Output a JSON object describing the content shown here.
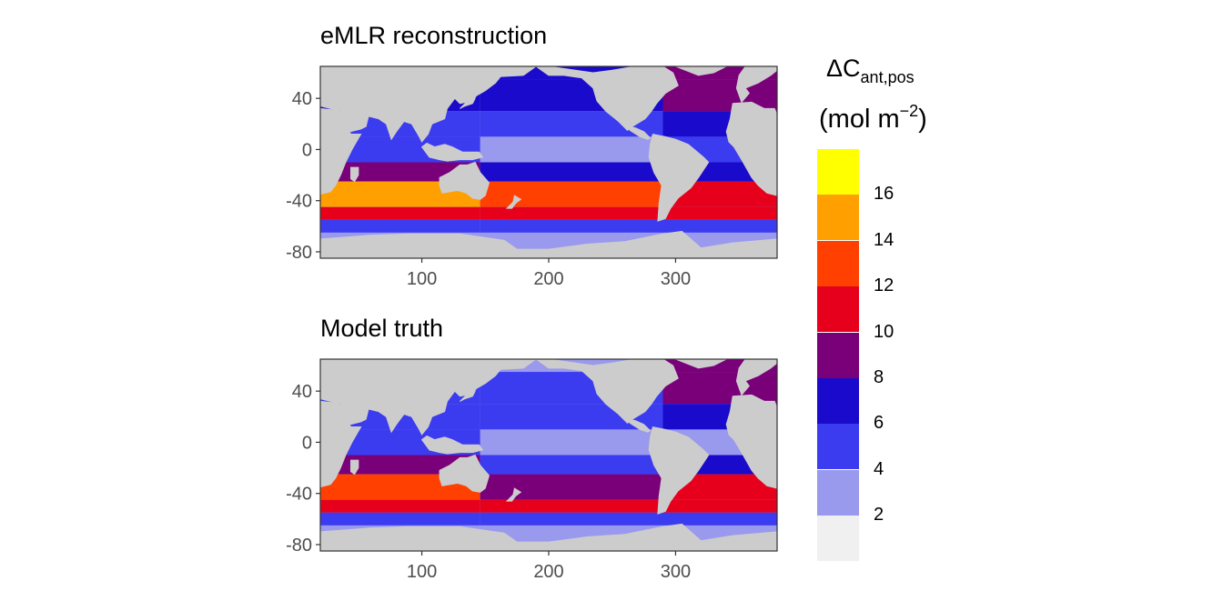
{
  "panels": [
    {
      "title": "eMLR reconstruction"
    },
    {
      "title": "Model truth"
    }
  ],
  "legend": {
    "title_symbol": "ΔC",
    "title_subscript": "ant,pos",
    "unit_prefix": "(mol m",
    "unit_superscript": "−2",
    "unit_suffix": ")",
    "breaks": [
      "2",
      "4",
      "6",
      "8",
      "10",
      "12",
      "14",
      "16"
    ],
    "colors": [
      "#f0f0f0",
      "#9999ee",
      "#3b3bef",
      "#1a0acb",
      "#7a0079",
      "#e6001c",
      "#ff4000",
      "#ff9f00",
      "#ffff00"
    ]
  },
  "colors": {
    "land": "#cccccc",
    "panel_border": "#333333"
  },
  "chart_data": [
    {
      "type": "heatmap",
      "title": "eMLR reconstruction",
      "xlabel": "",
      "ylabel": "",
      "xlim": [
        20,
        380
      ],
      "ylim": [
        -85,
        65
      ],
      "x_ticks": [
        100,
        200,
        300
      ],
      "y_ticks": [
        40,
        0,
        -40,
        -80
      ],
      "bands": [
        {
          "lat_range": [
            55,
            65
          ],
          "Pacific": "6-8",
          "Atlantic": "8-10"
        },
        {
          "lat_range": [
            30,
            55
          ],
          "Pacific": "6-8",
          "Atlantic": "8-10"
        },
        {
          "lat_range": [
            10,
            30
          ],
          "Pacific": "4-6",
          "Atlantic": "6-8"
        },
        {
          "lat_range": [
            -10,
            10
          ],
          "Pacific": "2-4",
          "Indian": "4-6",
          "Atlantic": "4-6"
        },
        {
          "lat_range": [
            -25,
            -10
          ],
          "Pacific": "6-8",
          "Indian": "8-10",
          "Atlantic": "6-8"
        },
        {
          "lat_range": [
            -45,
            -25
          ],
          "Pacific": "12-14",
          "Indian": "14-16",
          "Atlantic": "10-12"
        },
        {
          "lat_range": [
            -55,
            -45
          ],
          "Pacific": "10-12",
          "Indian": "10-12",
          "Atlantic": "10-12"
        },
        {
          "lat_range": [
            -65,
            -55
          ],
          "Pacific": "4-6",
          "Indian": "4-6",
          "Atlantic": "4-6"
        },
        {
          "lat_range": [
            -80,
            -65
          ],
          "Pacific": "2-4",
          "Indian": "2-4",
          "Atlantic": "2-4"
        }
      ]
    },
    {
      "type": "heatmap",
      "title": "Model truth",
      "xlabel": "",
      "ylabel": "",
      "xlim": [
        20,
        380
      ],
      "ylim": [
        -85,
        65
      ],
      "x_ticks": [
        100,
        200,
        300
      ],
      "y_ticks": [
        40,
        0,
        -40,
        -80
      ],
      "bands": [
        {
          "lat_range": [
            55,
            65
          ],
          "Pacific": "2-4",
          "Atlantic": "8-10"
        },
        {
          "lat_range": [
            30,
            55
          ],
          "Pacific": "4-6",
          "Atlantic": "8-10"
        },
        {
          "lat_range": [
            10,
            30
          ],
          "Pacific": "4-6",
          "Atlantic": "6-8"
        },
        {
          "lat_range": [
            -10,
            10
          ],
          "Pacific": "2-4",
          "Indian": "4-6",
          "Atlantic": "2-4"
        },
        {
          "lat_range": [
            -25,
            -10
          ],
          "Pacific": "4-6",
          "Indian": "8-10",
          "Atlantic": "6-8"
        },
        {
          "lat_range": [
            -45,
            -25
          ],
          "Pacific": "8-10",
          "Indian": "12-14",
          "Atlantic": "10-12"
        },
        {
          "lat_range": [
            -55,
            -45
          ],
          "Pacific": "10-12",
          "Indian": "10-12",
          "Atlantic": "10-12"
        },
        {
          "lat_range": [
            -65,
            -55
          ],
          "Pacific": "4-6",
          "Indian": "4-6",
          "Atlantic": "4-6"
        },
        {
          "lat_range": [
            -80,
            -65
          ],
          "Pacific": "2-4",
          "Indian": "2-4",
          "Atlantic": "2-4"
        }
      ]
    }
  ]
}
